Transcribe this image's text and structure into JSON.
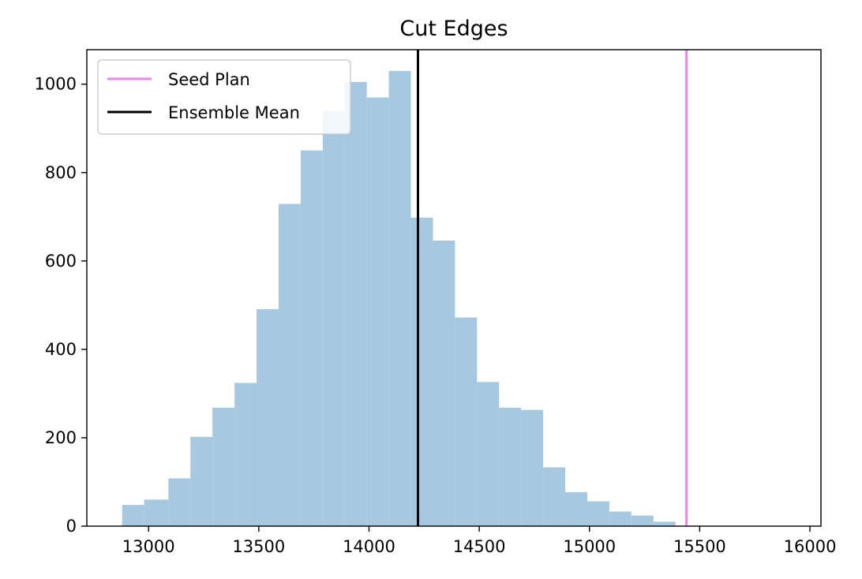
{
  "chart_data": {
    "type": "histogram",
    "title": "Cut Edges",
    "xlabel": "",
    "ylabel": "",
    "xlim": [
      12720,
      16050
    ],
    "ylim": [
      0,
      1078
    ],
    "x_ticks": [
      13000,
      13500,
      14000,
      14500,
      15000,
      15500,
      16000
    ],
    "y_ticks": [
      0,
      200,
      400,
      600,
      800,
      1000
    ],
    "grid": false,
    "bar_color": "#a6c8e0",
    "bins": [
      {
        "x0": 12880,
        "x1": 12980,
        "count": 48
      },
      {
        "x0": 12980,
        "x1": 13090,
        "count": 60
      },
      {
        "x0": 13090,
        "x1": 13190,
        "count": 108
      },
      {
        "x0": 13190,
        "x1": 13290,
        "count": 202
      },
      {
        "x0": 13290,
        "x1": 13390,
        "count": 268
      },
      {
        "x0": 13390,
        "x1": 13490,
        "count": 324
      },
      {
        "x0": 13490,
        "x1": 13590,
        "count": 491
      },
      {
        "x0": 13590,
        "x1": 13690,
        "count": 729
      },
      {
        "x0": 13690,
        "x1": 13790,
        "count": 850
      },
      {
        "x0": 13790,
        "x1": 13890,
        "count": 940
      },
      {
        "x0": 13890,
        "x1": 13990,
        "count": 1005
      },
      {
        "x0": 13990,
        "x1": 14090,
        "count": 970
      },
      {
        "x0": 14090,
        "x1": 14190,
        "count": 1030
      },
      {
        "x0": 14190,
        "x1": 14290,
        "count": 698
      },
      {
        "x0": 14290,
        "x1": 14390,
        "count": 646
      },
      {
        "x0": 14390,
        "x1": 14490,
        "count": 472
      },
      {
        "x0": 14490,
        "x1": 14590,
        "count": 326
      },
      {
        "x0": 14590,
        "x1": 14690,
        "count": 268
      },
      {
        "x0": 14690,
        "x1": 14790,
        "count": 263
      },
      {
        "x0": 14790,
        "x1": 14890,
        "count": 133
      },
      {
        "x0": 14890,
        "x1": 14990,
        "count": 77
      },
      {
        "x0": 14990,
        "x1": 15090,
        "count": 56
      },
      {
        "x0": 15090,
        "x1": 15190,
        "count": 33
      },
      {
        "x0": 15190,
        "x1": 15290,
        "count": 24
      },
      {
        "x0": 15290,
        "x1": 15390,
        "count": 10
      }
    ],
    "vlines": [
      {
        "name": "Seed Plan",
        "x": 15440,
        "color": "#ee82ee"
      },
      {
        "name": "Ensemble Mean",
        "x": 14222,
        "color": "#000000"
      }
    ],
    "legend": {
      "placement": "top-left",
      "entries": [
        "Seed Plan",
        "Ensemble Mean"
      ]
    }
  }
}
